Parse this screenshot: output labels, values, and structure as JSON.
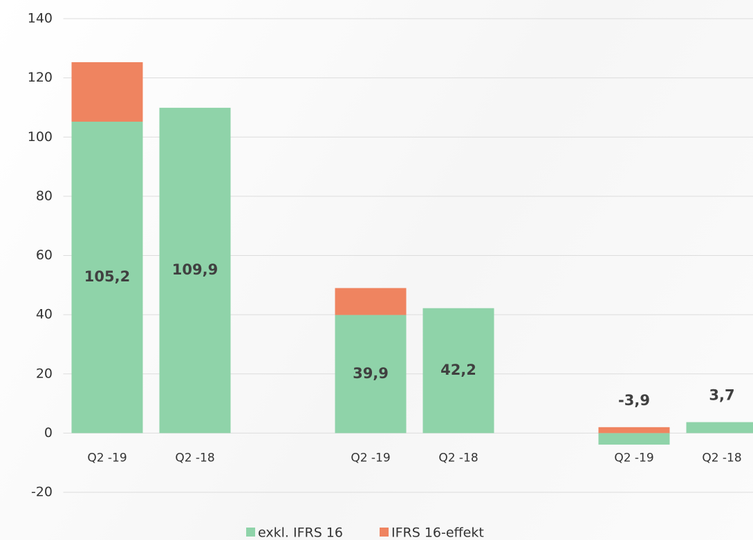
{
  "chart_data": {
    "type": "stacked_bar",
    "categories": [
      "Q2 -19",
      "Q2 -18",
      null,
      "Q2 -19",
      "Q2 -18",
      null,
      "Q2 -19",
      "Q2 -18"
    ],
    "series": [
      {
        "name": "exkl. IFRS 16",
        "color": "#8fd3a9",
        "values": [
          105.2,
          109.9,
          null,
          39.9,
          42.2,
          null,
          -3.9,
          3.7
        ],
        "value_labels": [
          "105,2",
          "109,9",
          null,
          "39,9",
          "42,2",
          null,
          "-3,9",
          "3,7"
        ]
      },
      {
        "name": "IFRS 16-effekt",
        "color": "#ef8460",
        "values": [
          20.1,
          null,
          null,
          9.1,
          null,
          null,
          2.0,
          null
        ]
      }
    ],
    "ylim": [
      -20,
      140
    ],
    "yticks": [
      -20,
      0,
      20,
      40,
      60,
      80,
      100,
      120,
      140
    ],
    "grid": true,
    "legend": "bottom"
  }
}
